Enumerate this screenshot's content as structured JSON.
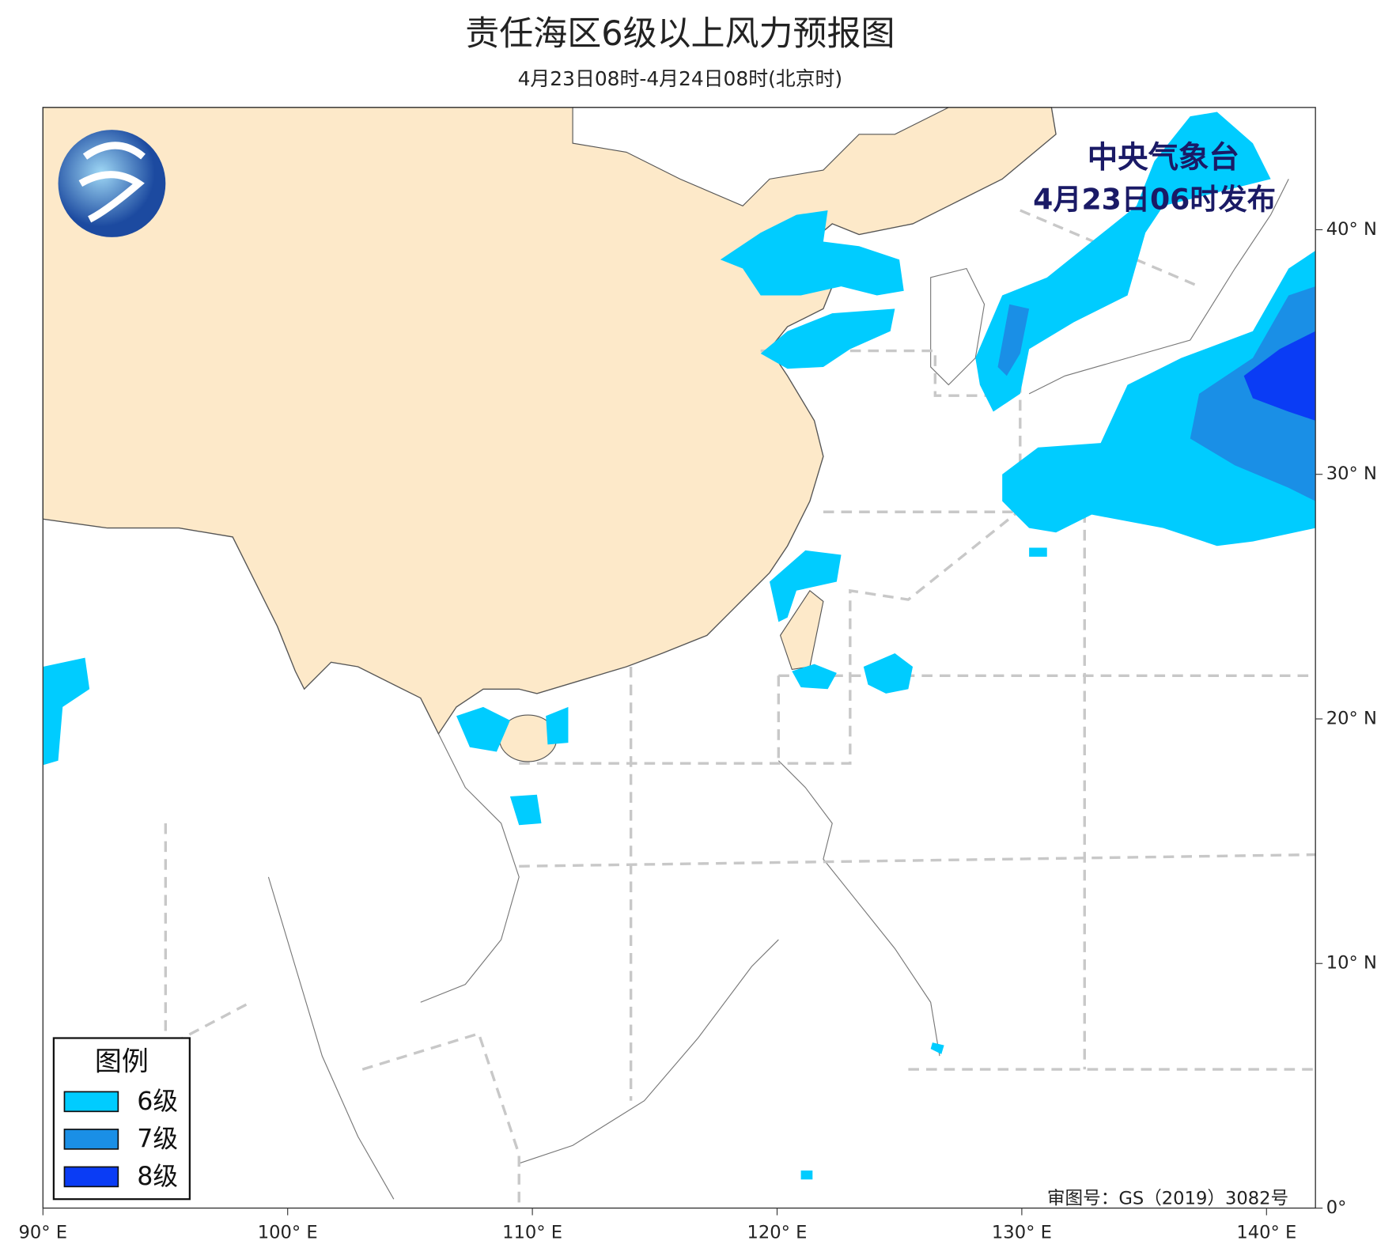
{
  "header": {
    "title": "责任海区6级以上风力预报图",
    "subtitle": "4月23日08时-4月24日08时(北京时)"
  },
  "publisher": {
    "name": "中央气象台",
    "issued": "4月23日06时发布"
  },
  "map": {
    "xlim": [
      90,
      142
    ],
    "ylim": [
      0,
      45
    ],
    "xticks": [
      {
        "value": 90,
        "label": "90° E"
      },
      {
        "value": 100,
        "label": "100° E"
      },
      {
        "value": 110,
        "label": "110° E"
      },
      {
        "value": 120,
        "label": "120° E"
      },
      {
        "value": 130,
        "label": "130° E"
      },
      {
        "value": 140,
        "label": "140° E"
      }
    ],
    "yticks": [
      {
        "value": 0,
        "label": "0°"
      },
      {
        "value": 10,
        "label": "10° N"
      },
      {
        "value": 20,
        "label": "20° N"
      },
      {
        "value": 30,
        "label": "30° N"
      },
      {
        "value": 40,
        "label": "40° N"
      }
    ]
  },
  "legend": {
    "title": "图例",
    "items": [
      {
        "label": "6级",
        "color": "#00ccff"
      },
      {
        "label": "7级",
        "color": "#1a8fe6"
      },
      {
        "label": "8级",
        "color": "#0a3cf5"
      }
    ]
  },
  "footer": {
    "review_number": "审图号：GS（2019）3082号"
  }
}
